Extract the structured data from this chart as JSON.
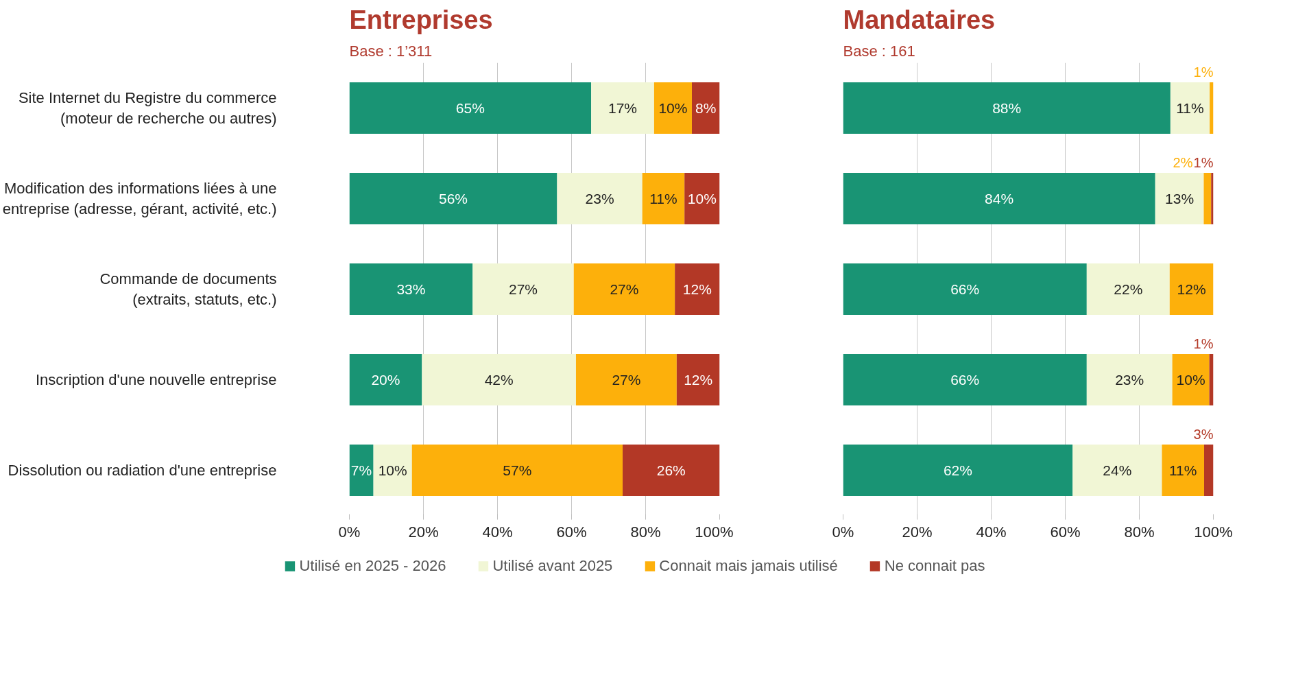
{
  "chart_data": [
    {
      "type": "bar",
      "orientation": "horizontal",
      "stacked": true,
      "title": "Entreprises",
      "subtitle": "Base : 1’311",
      "categories": [
        "Site Internet du Registre du commerce\n(moteur de recherche ou autres)",
        "Modification des informations liées à une\nentreprise (adresse, gérant, activité, etc.)",
        "Commande de documents\n(extraits, statuts, etc.)",
        "Inscription d'une nouvelle entreprise",
        "Dissolution ou radiation d'une entreprise"
      ],
      "series": [
        {
          "name": "Utilisé en 2025 - 2026",
          "color": "#199474",
          "values": [
            65.3,
            56.1,
            33.3,
            19.6,
            6.5
          ],
          "value_labels": [
            "65%",
            "56%",
            "33%",
            "20%",
            "7%"
          ]
        },
        {
          "name": "Utilisé avant 2025",
          "color": "#f1f6d5",
          "values": [
            17.0,
            23.0,
            27.3,
            41.6,
            10.4
          ],
          "value_labels": [
            "17%",
            "23%",
            "27%",
            "42%",
            "10%"
          ]
        },
        {
          "name": "Connait mais jamais utilisé",
          "color": "#fdb00b",
          "values": [
            10.2,
            11.4,
            27.3,
            27.2,
            56.9
          ],
          "value_labels": [
            "10%",
            "11%",
            "27%",
            "27%",
            "57%"
          ]
        },
        {
          "name": "Ne connait pas",
          "color": "#b33826",
          "values": [
            7.5,
            9.5,
            12.1,
            11.6,
            26.2
          ],
          "value_labels": [
            "8%",
            "10%",
            "12%",
            "12%",
            "26%"
          ]
        }
      ],
      "xlim": [
        0,
        100
      ],
      "xticks": [
        {
          "value": 0,
          "label": "0%"
        },
        {
          "value": 20,
          "label": "20%"
        },
        {
          "value": 40,
          "label": "40%"
        },
        {
          "value": 60,
          "label": "60%"
        },
        {
          "value": 80,
          "label": "80%"
        },
        {
          "value": 100,
          "label": "100%"
        }
      ],
      "grid": "x",
      "legend": "bottom"
    },
    {
      "type": "bar",
      "orientation": "horizontal",
      "stacked": true,
      "title": "Mandataires",
      "subtitle": "Base : 161",
      "categories": [
        null,
        null,
        null,
        null,
        null
      ],
      "series": [
        {
          "color": "#199474",
          "values": [
            88.4,
            84.3,
            65.8,
            65.8,
            62.0
          ],
          "value_labels": [
            "88%",
            "84%",
            "66%",
            "66%",
            "62%"
          ]
        },
        {
          "color": "#f1f6d5",
          "values": [
            10.6,
            13.1,
            22.4,
            23.1,
            24.1
          ],
          "value_labels": [
            "11%",
            "13%",
            "22%",
            "23%",
            "24%"
          ]
        },
        {
          "color": "#fdb00b",
          "values": [
            1.0,
            2.0,
            11.8,
            10.0,
            11.4
          ],
          "value_labels": [
            "1%",
            "2%",
            "12%",
            "10%",
            "11%"
          ]
        },
        {
          "color": "#b33826",
          "values": [
            0,
            0.6,
            0,
            1.1,
            2.5
          ],
          "value_labels": [
            null,
            "1%",
            null,
            "1%",
            "3%"
          ]
        }
      ],
      "xlim": [
        0,
        100
      ],
      "xticks": [
        {
          "value": 0,
          "label": "0%"
        },
        {
          "value": 20,
          "label": "20%"
        },
        {
          "value": 40,
          "label": "40%"
        },
        {
          "value": 60,
          "label": "60%"
        },
        {
          "value": 80,
          "label": "80%"
        },
        {
          "value": 100,
          "label": "100%"
        }
      ],
      "grid": "x"
    }
  ]
}
